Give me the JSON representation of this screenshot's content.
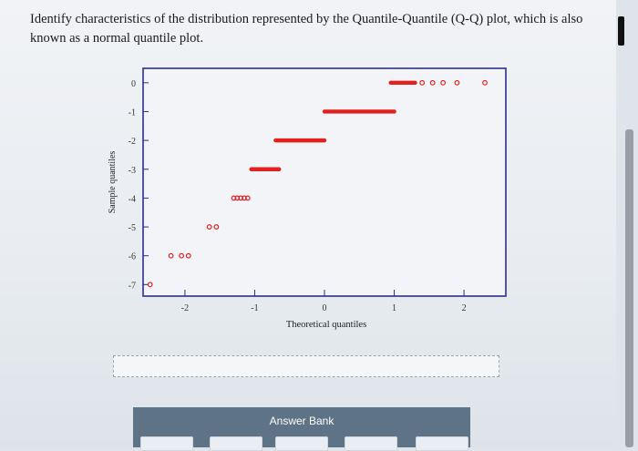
{
  "question": {
    "text": "Identify characteristics of the distribution represented by the Quantile-Quantile (Q-Q) plot, which is also known as a normal quantile plot."
  },
  "answer_bank": {
    "title": "Answer Bank"
  },
  "chart_data": {
    "type": "scatter",
    "xlabel": "Theoretical quantiles",
    "ylabel": "Sample quantiles",
    "xlim": [
      -2.6,
      2.6
    ],
    "ylim": [
      -7.4,
      0.5
    ],
    "x_ticks": [
      "-2",
      "-1",
      "0",
      "1",
      "2"
    ],
    "x_tick_values": [
      -2,
      -1,
      0,
      1,
      2
    ],
    "y_ticks": [
      "0",
      "-1",
      "-2",
      "-3",
      "-4",
      "-5",
      "-6",
      "-7"
    ],
    "y_tick_values": [
      0,
      -1,
      -2,
      -3,
      -4,
      -5,
      -6,
      -7
    ],
    "grid": false,
    "marker_color": "#e0211f",
    "points": [
      {
        "x": -2.5,
        "y": -7
      },
      {
        "x": -2.2,
        "y": -6
      },
      {
        "x": -2.05,
        "y": -6
      },
      {
        "x": -1.95,
        "y": -6
      },
      {
        "x": -1.65,
        "y": -5
      },
      {
        "x": -1.55,
        "y": -5
      },
      {
        "x": -1.3,
        "y": -4
      },
      {
        "x": -1.25,
        "y": -4
      },
      {
        "x": -1.2,
        "y": -4
      },
      {
        "x": -1.15,
        "y": -4
      },
      {
        "x": -1.1,
        "y": -4
      }
    ],
    "dense_runs": [
      {
        "x_start": -1.05,
        "x_end": -0.65,
        "y": -3
      },
      {
        "x_start": -0.7,
        "x_end": 0.0,
        "y": -2
      },
      {
        "x_start": 0.0,
        "x_end": 1.0,
        "y": -1
      },
      {
        "x_start": 0.95,
        "x_end": 1.3,
        "y": 0
      }
    ],
    "tail_points": [
      {
        "x": 1.4,
        "y": 0
      },
      {
        "x": 1.55,
        "y": 0
      },
      {
        "x": 1.7,
        "y": 0
      },
      {
        "x": 1.9,
        "y": 0
      },
      {
        "x": 2.3,
        "y": 0
      }
    ]
  }
}
